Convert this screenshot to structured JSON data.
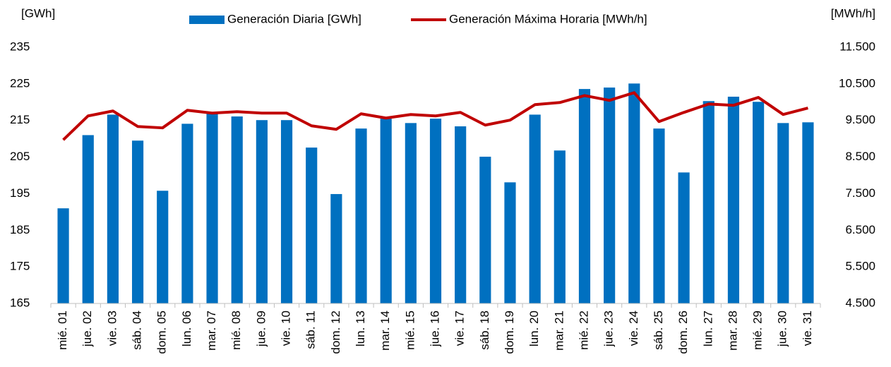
{
  "chart_data": {
    "type": "bar-line",
    "y_label": "[GWh]",
    "y2_label": "[MWh/h]",
    "categories": [
      "mié. 01",
      "jue. 02",
      "vie. 03",
      "sáb. 04",
      "dom. 05",
      "lun. 06",
      "mar. 07",
      "mié. 08",
      "jue. 09",
      "vie. 10",
      "sáb. 11",
      "dom. 12",
      "lun. 13",
      "mar. 14",
      "mié. 15",
      "jue. 16",
      "vie. 17",
      "sáb. 18",
      "dom. 19",
      "lun. 20",
      "mar. 21",
      "mié. 22",
      "jue. 23",
      "vie. 24",
      "sáb. 25",
      "dom. 26",
      "lun. 27",
      "mar. 28",
      "mié. 29",
      "jue. 30",
      "vie. 31"
    ],
    "series": [
      {
        "name": "Generación Diaria [GWh]",
        "type": "bar",
        "color": "#0070c0",
        "values": [
          191.0,
          211.0,
          216.6,
          209.5,
          195.8,
          214.1,
          217.2,
          216.1,
          215.1,
          215.1,
          207.6,
          194.9,
          212.8,
          215.5,
          214.3,
          215.5,
          213.4,
          205.1,
          198.1,
          216.6,
          206.8,
          223.6,
          224.0,
          225.1,
          212.8,
          200.8,
          220.3,
          221.5,
          220.1,
          214.3,
          214.5
        ]
      },
      {
        "name": "Generación Máxima Horaria [MWh/h]",
        "type": "line",
        "axis": "y2",
        "color": "#c00000",
        "values": [
          8970,
          9625,
          9760,
          9336,
          9298,
          9779,
          9702,
          9740,
          9702,
          9702,
          9355,
          9259,
          9683,
          9567,
          9664,
          9625,
          9721,
          9374,
          9510,
          9933,
          9990,
          10180,
          10050,
          10260,
          9470,
          9720,
          9950,
          9915,
          10130,
          9664,
          9840
        ]
      }
    ],
    "ylim": [
      165,
      235
    ],
    "yticks": [
      165,
      175,
      185,
      195,
      205,
      215,
      225,
      235
    ],
    "y2lim": [
      4500,
      11500
    ],
    "y2ticks": [
      {
        "value": 4500,
        "label": "4.500"
      },
      {
        "value": 5500,
        "label": "5.500"
      },
      {
        "value": 6500,
        "label": "6.500"
      },
      {
        "value": 7500,
        "label": "7.500"
      },
      {
        "value": 8500,
        "label": "8.500"
      },
      {
        "value": 9500,
        "label": "9.500"
      },
      {
        "value": 10500,
        "label": "10.500"
      },
      {
        "value": 11500,
        "label": "11.500"
      }
    ],
    "grid": false,
    "legend": "top"
  }
}
